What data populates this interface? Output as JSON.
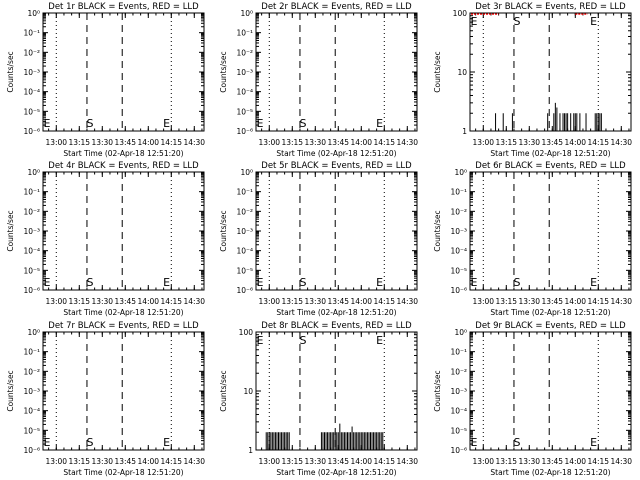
{
  "chart_data": [
    {
      "type": "line",
      "title": "Det 1r BLACK = Events, RED = LLD",
      "ylabel": "Counts/sec",
      "xlabel": "Start Time (02-Apr-18 12:51:20)",
      "scale": "log",
      "yticks": [
        "10⁰",
        "10⁻¹",
        "10⁻²",
        "10⁻³",
        "10⁻⁴",
        "10⁻⁵",
        "10⁻⁶"
      ],
      "ylim": [
        1e-06,
        1
      ],
      "xticks": [
        "13:00",
        "13:15",
        "13:30",
        "13:45",
        "14:00",
        "14:15",
        "14:30"
      ],
      "xlim": [
        "12:51:20",
        "14:36:20"
      ],
      "dotted_lines": [
        "13:00",
        "14:15"
      ],
      "dashed_lines": [
        "13:20",
        "13:43"
      ],
      "markers": [
        {
          "label": "E",
          "t": "12:52",
          "pos": "bottom"
        },
        {
          "label": "S",
          "t": "13:20",
          "pos": "bottom"
        },
        {
          "label": "E",
          "t": "14:10",
          "pos": "bottom"
        }
      ],
      "series": []
    },
    {
      "type": "line",
      "title": "Det 2r BLACK = Events, RED = LLD",
      "ylabel": "Counts/sec",
      "xlabel": "Start Time (02-Apr-18 12:51:20)",
      "scale": "log",
      "yticks": [
        "10⁰",
        "10⁻¹",
        "10⁻²",
        "10⁻³",
        "10⁻⁴",
        "10⁻⁵",
        "10⁻⁶"
      ],
      "ylim": [
        1e-06,
        1
      ],
      "xticks": [
        "13:00",
        "13:15",
        "13:30",
        "13:45",
        "14:00",
        "14:15",
        "14:30"
      ],
      "xlim": [
        "12:51:20",
        "14:36:20"
      ],
      "dotted_lines": [
        "13:00",
        "14:15"
      ],
      "dashed_lines": [
        "13:20",
        "13:43"
      ],
      "markers": [
        {
          "label": "E",
          "t": "12:52",
          "pos": "bottom"
        },
        {
          "label": "S",
          "t": "13:20",
          "pos": "bottom"
        },
        {
          "label": "E",
          "t": "14:10",
          "pos": "bottom"
        }
      ],
      "series": []
    },
    {
      "type": "line",
      "title": "Det 3r BLACK = Events, RED = LLD",
      "ylabel": "Counts/sec",
      "xlabel": "Start Time (02-Apr-18 12:51:20)",
      "scale": "log",
      "yticks": [
        "1",
        "10",
        "100"
      ],
      "ylim": [
        1,
        100
      ],
      "xticks": [
        "13:00",
        "13:15",
        "13:30",
        "13:45",
        "14:00",
        "14:15",
        "14:30"
      ],
      "xlim": [
        "12:51:20",
        "14:36:20"
      ],
      "dotted_lines": [
        "13:00",
        "14:15"
      ],
      "dashed_lines": [
        "13:20",
        "13:43"
      ],
      "markers": [
        {
          "label": "E",
          "t": "12:52",
          "pos": "top"
        },
        {
          "label": "S",
          "t": "13:20",
          "pos": "top"
        },
        {
          "label": "E",
          "t": "14:10",
          "pos": "top"
        }
      ],
      "series": [
        {
          "color": "#000000",
          "style": "spikes",
          "points": [
            [
              "13:08",
              2
            ],
            [
              "13:13",
              2
            ],
            [
              "13:19",
              2
            ],
            [
              "13:42",
              2
            ],
            [
              "13:46",
              2
            ],
            [
              "13:47",
              3
            ],
            [
              "13:48",
              2.5
            ],
            [
              "13:50",
              2
            ],
            [
              "13:52",
              2
            ],
            [
              "13:53",
              2
            ],
            [
              "13:54",
              2
            ],
            [
              "13:55",
              2
            ],
            [
              "13:57",
              2
            ],
            [
              "13:59",
              2
            ],
            [
              "14:00",
              2
            ],
            [
              "14:01",
              2
            ],
            [
              "14:03",
              2
            ],
            [
              "14:07",
              2
            ],
            [
              "14:13",
              2
            ],
            [
              "14:14",
              2
            ],
            [
              "14:15",
              2
            ],
            [
              "14:16",
              2
            ],
            [
              "14:17",
              2
            ]
          ]
        },
        {
          "color": "#ff0000",
          "style": "band",
          "points": [
            [
              "12:52",
              96
            ],
            [
              "13:10",
              96
            ],
            [
              "14:00",
              96
            ],
            [
              "14:08",
              96
            ]
          ]
        }
      ]
    },
    {
      "type": "line",
      "title": "Det 4r BLACK = Events, RED = LLD",
      "ylabel": "Counts/sec",
      "xlabel": "Start Time (02-Apr-18 12:51:20)",
      "scale": "log",
      "yticks": [
        "10⁰",
        "10⁻¹",
        "10⁻²",
        "10⁻³",
        "10⁻⁴",
        "10⁻⁵",
        "10⁻⁶"
      ],
      "ylim": [
        1e-06,
        1
      ],
      "xticks": [
        "13:00",
        "13:15",
        "13:30",
        "13:45",
        "14:00",
        "14:15",
        "14:30"
      ],
      "xlim": [
        "12:51:20",
        "14:36:20"
      ],
      "dotted_lines": [
        "13:00",
        "14:15"
      ],
      "dashed_lines": [
        "13:20",
        "13:43"
      ],
      "markers": [
        {
          "label": "E",
          "t": "12:52",
          "pos": "bottom"
        },
        {
          "label": "S",
          "t": "13:20",
          "pos": "bottom"
        },
        {
          "label": "E",
          "t": "14:10",
          "pos": "bottom"
        }
      ],
      "series": []
    },
    {
      "type": "line",
      "title": "Det 5r BLACK = Events, RED = LLD",
      "ylabel": "Counts/sec",
      "xlabel": "Start Time (02-Apr-18 12:51:20)",
      "scale": "log",
      "yticks": [
        "10⁰",
        "10⁻¹",
        "10⁻²",
        "10⁻³",
        "10⁻⁴",
        "10⁻⁵",
        "10⁻⁶"
      ],
      "ylim": [
        1e-06,
        1
      ],
      "xticks": [
        "13:00",
        "13:15",
        "13:30",
        "13:45",
        "14:00",
        "14:15",
        "14:30"
      ],
      "xlim": [
        "12:51:20",
        "14:36:20"
      ],
      "dotted_lines": [
        "13:00",
        "14:15"
      ],
      "dashed_lines": [
        "13:20",
        "13:43"
      ],
      "markers": [
        {
          "label": "E",
          "t": "12:52",
          "pos": "bottom"
        },
        {
          "label": "S",
          "t": "13:20",
          "pos": "bottom"
        },
        {
          "label": "E",
          "t": "14:10",
          "pos": "bottom"
        }
      ],
      "series": []
    },
    {
      "type": "line",
      "title": "Det 6r BLACK = Events, RED = LLD",
      "ylabel": "Counts/sec",
      "xlabel": "Start Time (02-Apr-18 12:51:20)",
      "scale": "log",
      "yticks": [
        "10⁰",
        "10⁻¹",
        "10⁻²",
        "10⁻³",
        "10⁻⁴",
        "10⁻⁵",
        "10⁻⁶"
      ],
      "ylim": [
        1e-06,
        1
      ],
      "xticks": [
        "13:00",
        "13:15",
        "13:30",
        "13:45",
        "14:00",
        "14:15",
        "14:30"
      ],
      "xlim": [
        "12:51:20",
        "14:36:20"
      ],
      "dotted_lines": [
        "13:00",
        "14:15"
      ],
      "dashed_lines": [
        "13:20",
        "13:43"
      ],
      "markers": [
        {
          "label": "E",
          "t": "12:52",
          "pos": "bottom"
        },
        {
          "label": "S",
          "t": "13:20",
          "pos": "bottom"
        },
        {
          "label": "E",
          "t": "14:10",
          "pos": "bottom"
        }
      ],
      "series": []
    },
    {
      "type": "line",
      "title": "Det 7r BLACK = Events, RED = LLD",
      "ylabel": "Counts/sec",
      "xlabel": "Start Time (02-Apr-18 12:51:20)",
      "scale": "log",
      "yticks": [
        "10⁰",
        "10⁻¹",
        "10⁻²",
        "10⁻³",
        "10⁻⁴",
        "10⁻⁵",
        "10⁻⁶"
      ],
      "ylim": [
        1e-06,
        1
      ],
      "xticks": [
        "13:00",
        "13:15",
        "13:30",
        "13:45",
        "14:00",
        "14:15",
        "14:30"
      ],
      "xlim": [
        "12:51:20",
        "14:36:20"
      ],
      "dotted_lines": [
        "13:00",
        "14:15"
      ],
      "dashed_lines": [
        "13:20",
        "13:43"
      ],
      "markers": [
        {
          "label": "E",
          "t": "12:52",
          "pos": "bottom"
        },
        {
          "label": "S",
          "t": "13:20",
          "pos": "bottom"
        },
        {
          "label": "E",
          "t": "14:10",
          "pos": "bottom"
        }
      ],
      "series": []
    },
    {
      "type": "line",
      "title": "Det 8r BLACK = Events, RED = LLD",
      "ylabel": "Counts/sec",
      "xlabel": "Start Time (02-Apr-18 12:51:20)",
      "scale": "log",
      "yticks": [
        "1",
        "10",
        "100"
      ],
      "ylim": [
        1,
        100
      ],
      "xticks": [
        "13:00",
        "13:15",
        "13:30",
        "13:45",
        "14:00",
        "14:15",
        "14:30"
      ],
      "xlim": [
        "12:51:20",
        "14:36:20"
      ],
      "dotted_lines": [
        "13:00",
        "14:15"
      ],
      "dashed_lines": [
        "13:20",
        "13:43"
      ],
      "markers": [
        {
          "label": "E",
          "t": "12:52",
          "pos": "top"
        },
        {
          "label": "S",
          "t": "13:20",
          "pos": "top"
        },
        {
          "label": "E",
          "t": "14:10",
          "pos": "top"
        }
      ],
      "series": [
        {
          "color": "#000000",
          "style": "spikes",
          "points": [
            [
              "12:58",
              2
            ],
            [
              "12:59",
              2
            ],
            [
              "13:00",
              2
            ],
            [
              "13:01",
              2
            ],
            [
              "13:02",
              2
            ],
            [
              "13:03",
              2
            ],
            [
              "13:04",
              2
            ],
            [
              "13:05",
              2
            ],
            [
              "13:06",
              2
            ],
            [
              "13:07",
              2
            ],
            [
              "13:08",
              2
            ],
            [
              "13:09",
              2
            ],
            [
              "13:10",
              2
            ],
            [
              "13:11",
              2
            ],
            [
              "13:12",
              2
            ],
            [
              "13:13",
              2
            ],
            [
              "13:34",
              2
            ],
            [
              "13:35",
              2
            ],
            [
              "13:36",
              2
            ],
            [
              "13:37",
              2
            ],
            [
              "13:38",
              2
            ],
            [
              "13:39",
              2
            ],
            [
              "13:40",
              2
            ],
            [
              "13:41",
              2
            ],
            [
              "13:42",
              2
            ],
            [
              "13:43",
              2
            ],
            [
              "13:44",
              2
            ],
            [
              "13:45",
              2
            ],
            [
              "13:46",
              2.8
            ],
            [
              "13:47",
              2
            ],
            [
              "13:48",
              2
            ],
            [
              "13:49",
              2
            ],
            [
              "13:50",
              2
            ],
            [
              "13:51",
              2
            ],
            [
              "13:52",
              2
            ],
            [
              "13:53",
              2
            ],
            [
              "13:54",
              2.5
            ],
            [
              "13:55",
              2
            ],
            [
              "13:56",
              2
            ],
            [
              "13:57",
              2
            ],
            [
              "13:58",
              2
            ],
            [
              "13:59",
              2
            ],
            [
              "14:00",
              2
            ],
            [
              "14:01",
              2
            ],
            [
              "14:02",
              2
            ],
            [
              "14:03",
              2
            ],
            [
              "14:04",
              2
            ],
            [
              "14:05",
              2
            ],
            [
              "14:06",
              2
            ],
            [
              "14:07",
              2
            ],
            [
              "14:08",
              2
            ],
            [
              "14:09",
              2
            ],
            [
              "14:10",
              2
            ],
            [
              "14:11",
              2
            ],
            [
              "14:12",
              2
            ],
            [
              "14:13",
              2
            ],
            [
              "14:14",
              2
            ]
          ]
        }
      ]
    },
    {
      "type": "line",
      "title": "Det 9r BLACK = Events, RED = LLD",
      "ylabel": "Counts/sec",
      "xlabel": "Start Time (02-Apr-18 12:51:20)",
      "scale": "log",
      "yticks": [
        "10⁰",
        "10⁻¹",
        "10⁻²",
        "10⁻³",
        "10⁻⁴",
        "10⁻⁵",
        "10⁻⁶"
      ],
      "ylim": [
        1e-06,
        1
      ],
      "xticks": [
        "13:00",
        "13:15",
        "13:30",
        "13:45",
        "14:00",
        "14:15",
        "14:30"
      ],
      "xlim": [
        "12:51:20",
        "14:36:20"
      ],
      "dotted_lines": [
        "13:00",
        "14:15"
      ],
      "dashed_lines": [
        "13:20",
        "13:43"
      ],
      "markers": [
        {
          "label": "E",
          "t": "12:52",
          "pos": "bottom"
        },
        {
          "label": "S",
          "t": "13:20",
          "pos": "bottom"
        },
        {
          "label": "E",
          "t": "14:10",
          "pos": "bottom"
        }
      ],
      "series": []
    }
  ]
}
